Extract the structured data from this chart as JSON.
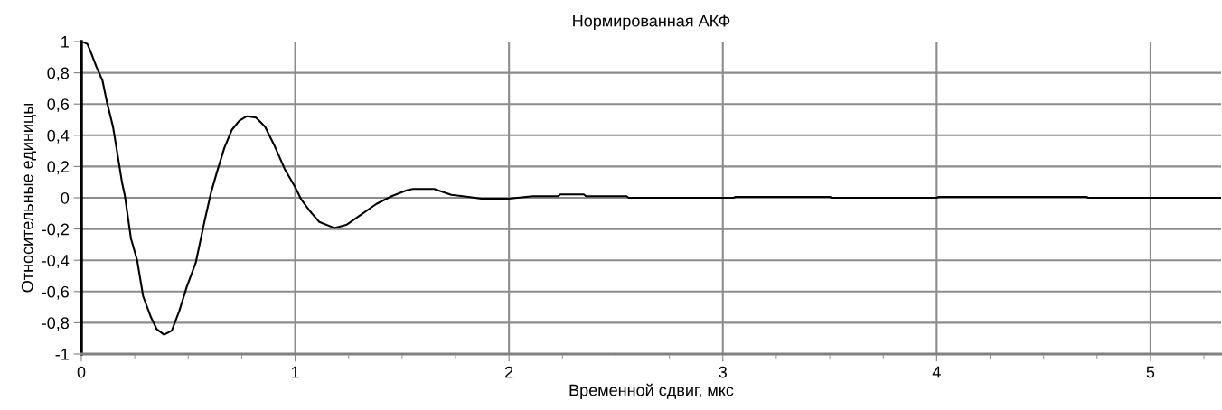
{
  "chart_data": {
    "type": "line",
    "title": "Нормированная АКФ",
    "xlabel": "Временной сдвиг, мкс",
    "ylabel": "Относительные единицы",
    "xlim": [
      0,
      5.33
    ],
    "ylim": [
      -1,
      1
    ],
    "xticks": [
      0,
      {
        "value": 0.25,
        "label": null
      },
      {
        "value": 0.5,
        "label": null
      },
      {
        "value": 0.75,
        "label": null
      },
      1,
      {
        "value": 1.25,
        "label": null
      },
      {
        "value": 1.5,
        "label": null
      },
      {
        "value": 1.75,
        "label": null
      },
      2,
      {
        "value": 2.25,
        "label": null
      },
      {
        "value": 2.5,
        "label": null
      },
      {
        "value": 2.75,
        "label": null
      },
      3,
      {
        "value": 3.25,
        "label": null
      },
      {
        "value": 3.5,
        "label": null
      },
      {
        "value": 3.75,
        "label": null
      },
      4,
      {
        "value": 4.25,
        "label": null
      },
      {
        "value": 4.5,
        "label": null
      },
      {
        "value": 4.75,
        "label": null
      },
      5,
      {
        "value": 5.25,
        "label": null
      }
    ],
    "yticks": [
      {
        "value": -1,
        "label": "-1"
      },
      {
        "value": -0.8,
        "label": "-0,8"
      },
      {
        "value": -0.6,
        "label": "-0,6"
      },
      {
        "value": -0.4,
        "label": "-0,4"
      },
      {
        "value": -0.2,
        "label": "-0,2"
      },
      0,
      {
        "value": 0.2,
        "label": "0,2"
      },
      {
        "value": 0.4,
        "label": "0,4"
      },
      {
        "value": 0.6,
        "label": "0,6"
      },
      {
        "value": 0.8,
        "label": "0,8"
      },
      1
    ],
    "grid": true,
    "legend": false,
    "series": [
      {
        "color": "#000000",
        "x": [
          0,
          0.028,
          0.042,
          0.07,
          0.099,
          0.12,
          0.148,
          0.169,
          0.19,
          0.204,
          0.232,
          0.261,
          0.289,
          0.324,
          0.352,
          0.387,
          0.423,
          0.458,
          0.493,
          0.535,
          0.577,
          0.606,
          0.634,
          0.669,
          0.704,
          0.739,
          0.775,
          0.817,
          0.859,
          0.901,
          0.951,
          1.0,
          1.028,
          1.07,
          1.113,
          1.183,
          1.239,
          1.31,
          1.38,
          1.451,
          1.521,
          1.55,
          1.65,
          1.73,
          1.81,
          1.87,
          2.0,
          2.11,
          2.23,
          2.24,
          2.35,
          2.36,
          2.55,
          2.56,
          3.05,
          3.06,
          3.5,
          3.51,
          4.0,
          4.01,
          4.7,
          4.71,
          5.33
        ],
        "values": [
          1,
          0.985,
          0.94,
          0.84,
          0.75,
          0.61,
          0.455,
          0.28,
          0.1,
          0.01,
          -0.26,
          -0.4,
          -0.63,
          -0.76,
          -0.84,
          -0.876,
          -0.85,
          -0.725,
          -0.57,
          -0.416,
          -0.145,
          0.03,
          0.164,
          0.32,
          0.435,
          0.493,
          0.522,
          0.513,
          0.455,
          0.34,
          0.184,
          0.068,
          -0.01,
          -0.087,
          -0.155,
          -0.193,
          -0.174,
          -0.106,
          -0.039,
          0.01,
          0.048,
          0.056,
          0.056,
          0.019,
          0.006,
          -0.006,
          -0.006,
          0.01,
          0.01,
          0.022,
          0.022,
          0.01,
          0.01,
          0,
          0,
          0.006,
          0.006,
          0,
          0,
          0.006,
          0.006,
          0,
          0
        ]
      }
    ]
  }
}
